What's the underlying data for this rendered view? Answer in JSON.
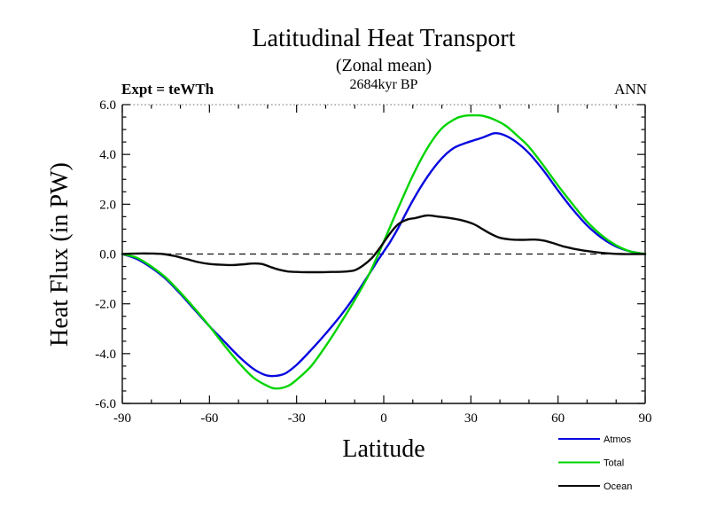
{
  "page": {
    "background": "#ffffff"
  },
  "header": {
    "title": "Latitudinal Heat Transport",
    "subtitle": "(Zonal mean)",
    "date_label": "2684kyr BP",
    "experiment_label": "Expt = teWTh",
    "season_label": "ANN"
  },
  "chart_data": {
    "type": "line",
    "title": "Latitudinal Heat Transport",
    "subtitle": "(Zonal mean)",
    "xlabel": "Latitude",
    "ylabel": "Heat Flux (in PW)",
    "xlim": [
      -90,
      90
    ],
    "ylim": [
      -6.0,
      6.0
    ],
    "x_major_ticks": [
      -90,
      -60,
      -30,
      0,
      30,
      60,
      90
    ],
    "x_tick_labels": [
      "-90",
      "-60",
      "-30",
      "0",
      "30",
      "60",
      "90"
    ],
    "x_minor_step": 10,
    "y_major_ticks": [
      -6,
      -4,
      -2,
      0,
      2,
      4,
      6
    ],
    "y_tick_labels": [
      "-6.0",
      "-4.0",
      "-2.0",
      "0.0",
      "2.0",
      "4.0",
      "6.0"
    ],
    "y_minor_step": 0.5,
    "grid": false,
    "zero_line": {
      "style": "dashed",
      "color": "#111111"
    },
    "legend_position": "outside-bottom-right",
    "series": [
      {
        "name": "Atmos",
        "color": "#0808e0",
        "x": [
          -90,
          -85,
          -80,
          -75,
          -70,
          -65,
          -60,
          -55,
          -50,
          -45,
          -41,
          -38,
          -34,
          -30,
          -25,
          -20,
          -15,
          -10,
          -5,
          -2,
          0,
          2,
          5,
          10,
          15,
          20,
          24,
          28,
          32,
          35,
          38,
          41,
          45,
          50,
          55,
          60,
          65,
          70,
          75,
          80,
          85,
          90
        ],
        "values": [
          0,
          -0.2,
          -0.55,
          -1.0,
          -1.6,
          -2.25,
          -2.9,
          -3.5,
          -4.1,
          -4.6,
          -4.85,
          -4.9,
          -4.8,
          -4.45,
          -3.85,
          -3.2,
          -2.5,
          -1.7,
          -0.8,
          -0.25,
          0.1,
          0.45,
          1.05,
          2.15,
          3.1,
          3.85,
          4.25,
          4.45,
          4.6,
          4.72,
          4.85,
          4.8,
          4.55,
          4.05,
          3.35,
          2.55,
          1.8,
          1.15,
          0.65,
          0.3,
          0.1,
          0
        ]
      },
      {
        "name": "Total",
        "color": "#00d400",
        "x": [
          -90,
          -85,
          -80,
          -75,
          -70,
          -65,
          -60,
          -55,
          -50,
          -45,
          -40,
          -37,
          -33,
          -30,
          -25,
          -20,
          -15,
          -10,
          -5,
          0,
          5,
          10,
          15,
          20,
          25,
          28,
          31,
          34,
          38,
          42,
          46,
          50,
          55,
          60,
          65,
          70,
          75,
          80,
          85,
          90
        ],
        "values": [
          0,
          -0.15,
          -0.5,
          -0.95,
          -1.55,
          -2.2,
          -2.9,
          -3.65,
          -4.35,
          -4.95,
          -5.3,
          -5.4,
          -5.3,
          -5.05,
          -4.5,
          -3.7,
          -2.8,
          -1.85,
          -0.8,
          0.5,
          1.85,
          3.15,
          4.25,
          5.05,
          5.45,
          5.55,
          5.57,
          5.55,
          5.4,
          5.15,
          4.75,
          4.3,
          3.55,
          2.75,
          2.0,
          1.3,
          0.75,
          0.35,
          0.1,
          0
        ]
      },
      {
        "name": "Ocean",
        "color": "#0a0a0a",
        "x": [
          -90,
          -85,
          -80,
          -76,
          -72,
          -68,
          -64,
          -60,
          -56,
          -52,
          -48,
          -45,
          -42,
          -39,
          -36,
          -33,
          -30,
          -26,
          -22,
          -18,
          -14,
          -10,
          -7,
          -4,
          -1,
          2,
          5,
          8,
          11,
          15,
          19,
          23,
          27,
          31,
          34,
          37,
          40,
          44,
          48,
          52,
          55,
          58,
          62,
          66,
          70,
          74,
          78,
          82,
          86,
          90
        ],
        "values": [
          0,
          0.02,
          0.02,
          0,
          -0.08,
          -0.2,
          -0.32,
          -0.4,
          -0.43,
          -0.44,
          -0.41,
          -0.38,
          -0.4,
          -0.52,
          -0.63,
          -0.7,
          -0.72,
          -0.73,
          -0.73,
          -0.72,
          -0.71,
          -0.65,
          -0.45,
          -0.15,
          0.3,
          0.8,
          1.2,
          1.38,
          1.45,
          1.55,
          1.5,
          1.44,
          1.35,
          1.2,
          1.0,
          0.8,
          0.65,
          0.58,
          0.57,
          0.58,
          0.54,
          0.45,
          0.3,
          0.2,
          0.12,
          0.06,
          0.02,
          0,
          0,
          0
        ]
      }
    ]
  }
}
